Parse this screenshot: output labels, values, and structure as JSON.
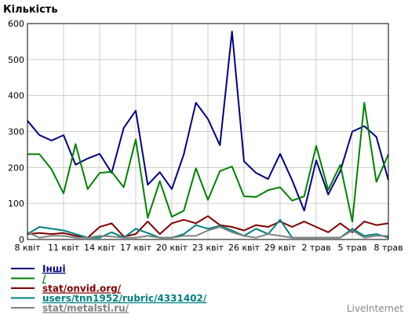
{
  "chart_data": {
    "type": "line",
    "ylabel": "Кількість",
    "ylim": [
      0,
      600
    ],
    "yticks": [
      0,
      100,
      200,
      300,
      400,
      500,
      600
    ],
    "grid": true,
    "x": [
      "8 квіт",
      "9 квіт",
      "10 квіт",
      "11 квіт",
      "12 квіт",
      "13 квіт",
      "14 квіт",
      "15 квіт",
      "16 квіт",
      "17 квіт",
      "18 квіт",
      "19 квіт",
      "20 квіт",
      "21 квіт",
      "22 квіт",
      "23 квіт",
      "24 квіт",
      "25 квіт",
      "26 квіт",
      "27 квіт",
      "28 квіт",
      "29 квіт",
      "30 квіт",
      "1 трав",
      "2 трав",
      "3 трав",
      "4 трав",
      "5 трав",
      "6 трав",
      "7 трав",
      "8 трав"
    ],
    "xtick_labels": [
      "8 квіт",
      "11 квіт",
      "14 квіт",
      "17 квіт",
      "20 квіт",
      "23 квіт",
      "26 квіт",
      "29 квіт",
      "2 трав",
      "5 трав",
      "8 трав"
    ],
    "xtick_indices": [
      0,
      3,
      6,
      9,
      12,
      15,
      18,
      21,
      24,
      27,
      30
    ],
    "legend_position": "bottom-left",
    "series": [
      {
        "name": "Інші",
        "color": "#000080",
        "values": [
          330,
          290,
          275,
          290,
          208,
          225,
          238,
          185,
          310,
          358,
          152,
          187,
          140,
          237,
          380,
          335,
          262,
          578,
          217,
          185,
          168,
          238,
          165,
          80,
          220,
          125,
          190,
          300,
          315,
          285,
          165
        ]
      },
      {
        "name": "/",
        "color": "#008000",
        "values": [
          237,
          237,
          195,
          128,
          265,
          140,
          185,
          188,
          145,
          278,
          60,
          162,
          63,
          80,
          198,
          110,
          190,
          203,
          120,
          118,
          137,
          145,
          108,
          120,
          260,
          138,
          207,
          50,
          380,
          160,
          237
        ]
      },
      {
        "name": "stat/onvid.org/",
        "color": "#800000",
        "values": [
          15,
          18,
          15,
          18,
          10,
          5,
          35,
          45,
          8,
          15,
          50,
          15,
          45,
          55,
          45,
          65,
          40,
          35,
          25,
          40,
          35,
          50,
          35,
          50,
          35,
          20,
          45,
          20,
          50,
          40,
          45
        ]
      },
      {
        "name": "users/tnn1952/rubric/4331402/",
        "color": "#008080",
        "values": [
          15,
          35,
          30,
          25,
          15,
          5,
          5,
          20,
          5,
          30,
          18,
          5,
          5,
          15,
          40,
          30,
          38,
          25,
          10,
          30,
          15,
          55,
          5,
          5,
          5,
          5,
          5,
          30,
          10,
          15,
          5
        ]
      },
      {
        "name": "stat/metalsti.ru/",
        "color": "#808080",
        "values": [
          20,
          5,
          10,
          10,
          5,
          5,
          10,
          8,
          5,
          5,
          10,
          5,
          5,
          10,
          10,
          25,
          35,
          20,
          10,
          5,
          15,
          10,
          5,
          5,
          5,
          5,
          5,
          25,
          5,
          10,
          10
        ]
      }
    ]
  },
  "branding": "LiveInternet"
}
